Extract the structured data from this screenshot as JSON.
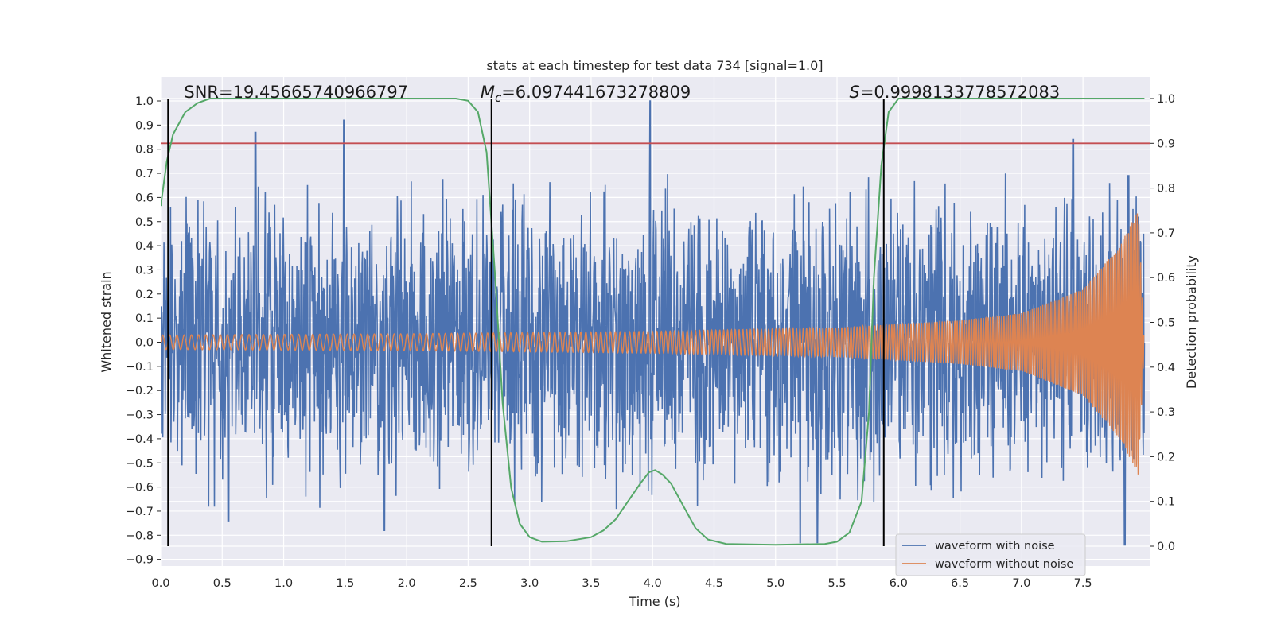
{
  "chart_data": {
    "type": "line",
    "title": "stats at each timestep for test data 734 [signal=1.0]",
    "xlabel": "Time (s)",
    "ylabel": "Whitened strain",
    "y2label": "Detection probability",
    "xlim": [
      0.0,
      8.0
    ],
    "ylim": [
      -0.95,
      1.09
    ],
    "y2lim": [
      -0.0,
      1.0
    ],
    "xticks": [
      "0.0",
      "0.5",
      "1.0",
      "1.5",
      "2.0",
      "2.5",
      "3.0",
      "3.5",
      "4.0",
      "4.5",
      "5.0",
      "5.5",
      "6.0",
      "6.5",
      "7.0",
      "7.5"
    ],
    "yticks": [
      "1.0",
      "0.9",
      "0.8",
      "0.7",
      "0.6",
      "0.5",
      "0.4",
      "0.3",
      "0.2",
      "0.1",
      "0.0",
      "−0.1",
      "−0.2",
      "−0.3",
      "−0.4",
      "−0.5",
      "−0.6",
      "−0.7",
      "−0.8",
      "−0.9"
    ],
    "y2ticks": [
      "1.0",
      "0.9",
      "0.8",
      "0.7",
      "0.6",
      "0.5",
      "0.4",
      "0.3",
      "0.2",
      "0.1",
      "0.0"
    ],
    "grid": true,
    "legend": "lower-right",
    "series": [
      {
        "name": "waveform with noise",
        "color": "#4c72b0",
        "style": "noise",
        "typical_band": [
          -0.28,
          0.3
        ],
        "peaks_up": [
          [
            0.77,
            0.87
          ],
          [
            1.49,
            0.92
          ],
          [
            3.98,
            1.0
          ],
          [
            7.42,
            0.84
          ],
          [
            7.87,
            0.69
          ]
        ],
        "peaks_down": [
          [
            0.55,
            -0.74
          ],
          [
            1.82,
            -0.78
          ],
          [
            5.2,
            -0.83
          ],
          [
            5.34,
            -0.83
          ],
          [
            7.84,
            -0.84
          ]
        ]
      },
      {
        "name": "waveform without noise",
        "color": "#dd8452",
        "style": "chirp",
        "points": [
          [
            0.0,
            0.03
          ],
          [
            2.0,
            0.035
          ],
          [
            4.0,
            0.045
          ],
          [
            5.5,
            0.06
          ],
          [
            6.5,
            0.09
          ],
          [
            7.0,
            0.12
          ],
          [
            7.5,
            0.22
          ],
          [
            7.8,
            0.4
          ],
          [
            7.95,
            0.55
          ],
          [
            8.0,
            0.0
          ]
        ]
      },
      {
        "name": "",
        "color": "#55a868",
        "axis": "right",
        "points": [
          [
            0.0,
            0.76
          ],
          [
            0.05,
            0.86
          ],
          [
            0.1,
            0.92
          ],
          [
            0.2,
            0.97
          ],
          [
            0.3,
            0.99
          ],
          [
            0.4,
            1.0
          ],
          [
            2.4,
            1.0
          ],
          [
            2.5,
            0.995
          ],
          [
            2.58,
            0.97
          ],
          [
            2.65,
            0.88
          ],
          [
            2.72,
            0.6
          ],
          [
            2.78,
            0.32
          ],
          [
            2.85,
            0.13
          ],
          [
            2.92,
            0.05
          ],
          [
            3.0,
            0.02
          ],
          [
            3.1,
            0.01
          ],
          [
            3.3,
            0.011
          ],
          [
            3.5,
            0.02
          ],
          [
            3.6,
            0.035
          ],
          [
            3.7,
            0.06
          ],
          [
            3.8,
            0.1
          ],
          [
            3.9,
            0.14
          ],
          [
            3.97,
            0.165
          ],
          [
            4.02,
            0.17
          ],
          [
            4.08,
            0.16
          ],
          [
            4.15,
            0.14
          ],
          [
            4.25,
            0.09
          ],
          [
            4.35,
            0.04
          ],
          [
            4.45,
            0.015
          ],
          [
            4.6,
            0.005
          ],
          [
            5.0,
            0.003
          ],
          [
            5.4,
            0.005
          ],
          [
            5.5,
            0.01
          ],
          [
            5.6,
            0.03
          ],
          [
            5.7,
            0.1
          ],
          [
            5.76,
            0.3
          ],
          [
            5.8,
            0.6
          ],
          [
            5.86,
            0.85
          ],
          [
            5.92,
            0.97
          ],
          [
            6.0,
            1.0
          ],
          [
            8.0,
            1.0
          ]
        ]
      }
    ],
    "hlines": [
      {
        "axis": "right",
        "y": 0.9,
        "color": "#c44e52"
      }
    ],
    "vlines": [
      0.06,
      2.69,
      5.88
    ],
    "annotations": [
      {
        "x": 0.19,
        "text": "SNR=19.45665740966797"
      },
      {
        "x": 2.6,
        "symbol": "M",
        "subscript": "c",
        "text": "=6.097441673278809"
      },
      {
        "x": 5.6,
        "symbol": "S",
        "subscript": "",
        "text": "=0.9998133778572083"
      }
    ]
  }
}
